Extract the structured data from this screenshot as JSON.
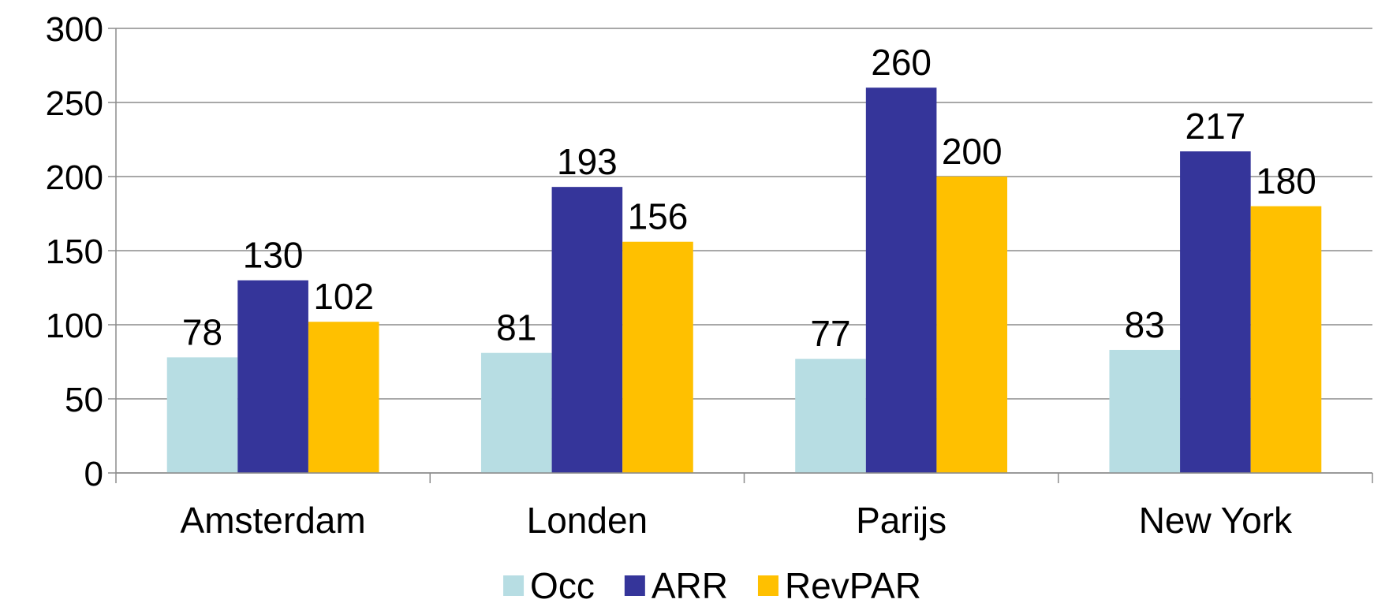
{
  "chart_data": {
    "type": "bar",
    "categories": [
      "Amsterdam",
      "Londen",
      "Parijs",
      "New York"
    ],
    "series": [
      {
        "name": "Occ",
        "color": "#b7dde3",
        "values": [
          78,
          81,
          77,
          83
        ]
      },
      {
        "name": "ARR",
        "color": "#35359a",
        "values": [
          130,
          193,
          260,
          217
        ]
      },
      {
        "name": "RevPAR",
        "color": "#ffc000",
        "values": [
          102,
          156,
          200,
          180
        ]
      }
    ],
    "ylim": [
      0,
      300
    ],
    "yticks": [
      0,
      50,
      100,
      150,
      200,
      250,
      300
    ],
    "grid": true,
    "legend": "bottom"
  }
}
